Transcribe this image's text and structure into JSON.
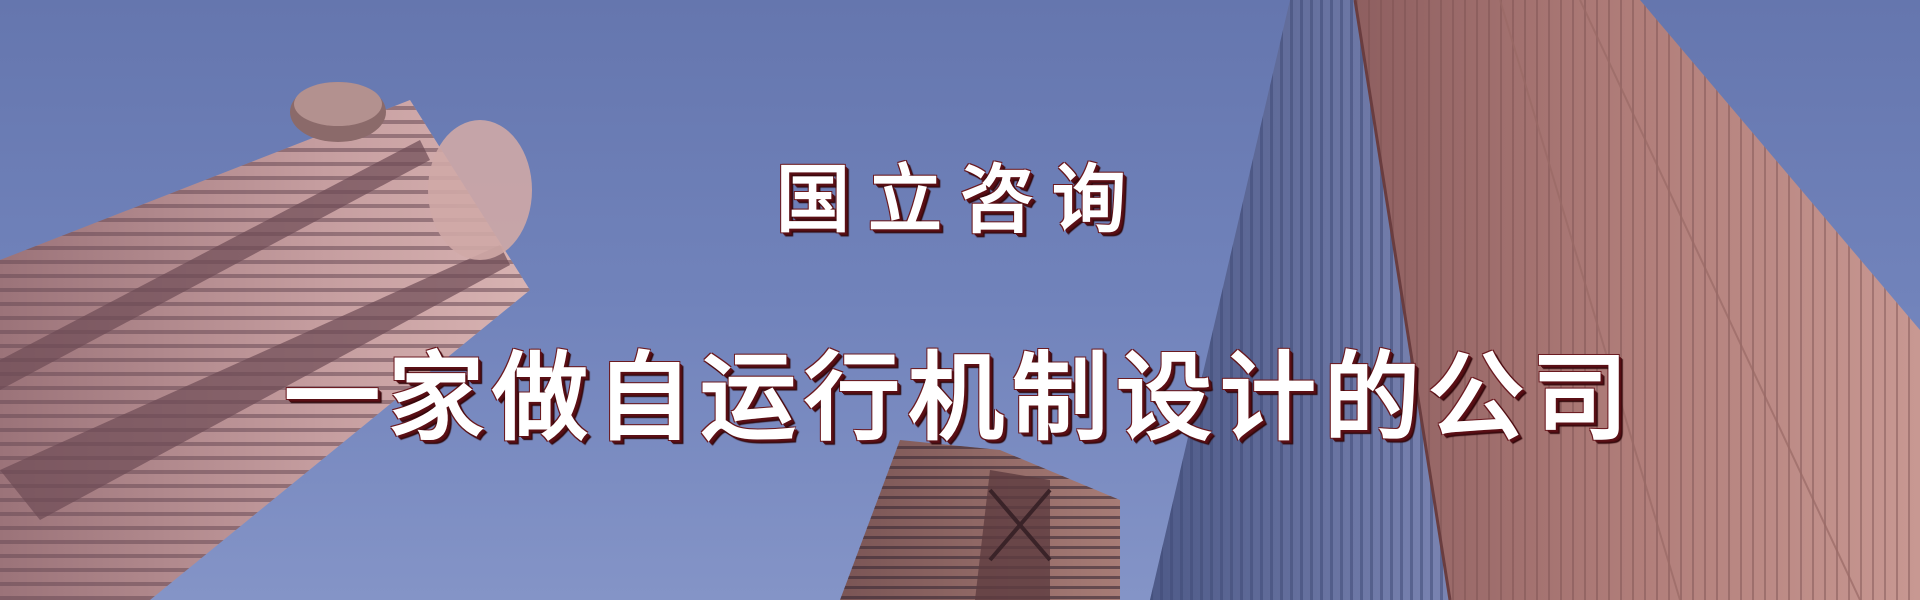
{
  "banner": {
    "title": "国立咨询",
    "slogan": "一家做自运行机制设计的公司"
  },
  "colors": {
    "sky_top": "#6778b0",
    "sky_bottom": "#8190c4",
    "building_pink": "#b58f8f",
    "building_glass": "#5d6b9e",
    "text_fill": "#ffffff",
    "text_shadow": "#5a0f15"
  },
  "icons": {
    "background": "skyscrapers-photo"
  }
}
